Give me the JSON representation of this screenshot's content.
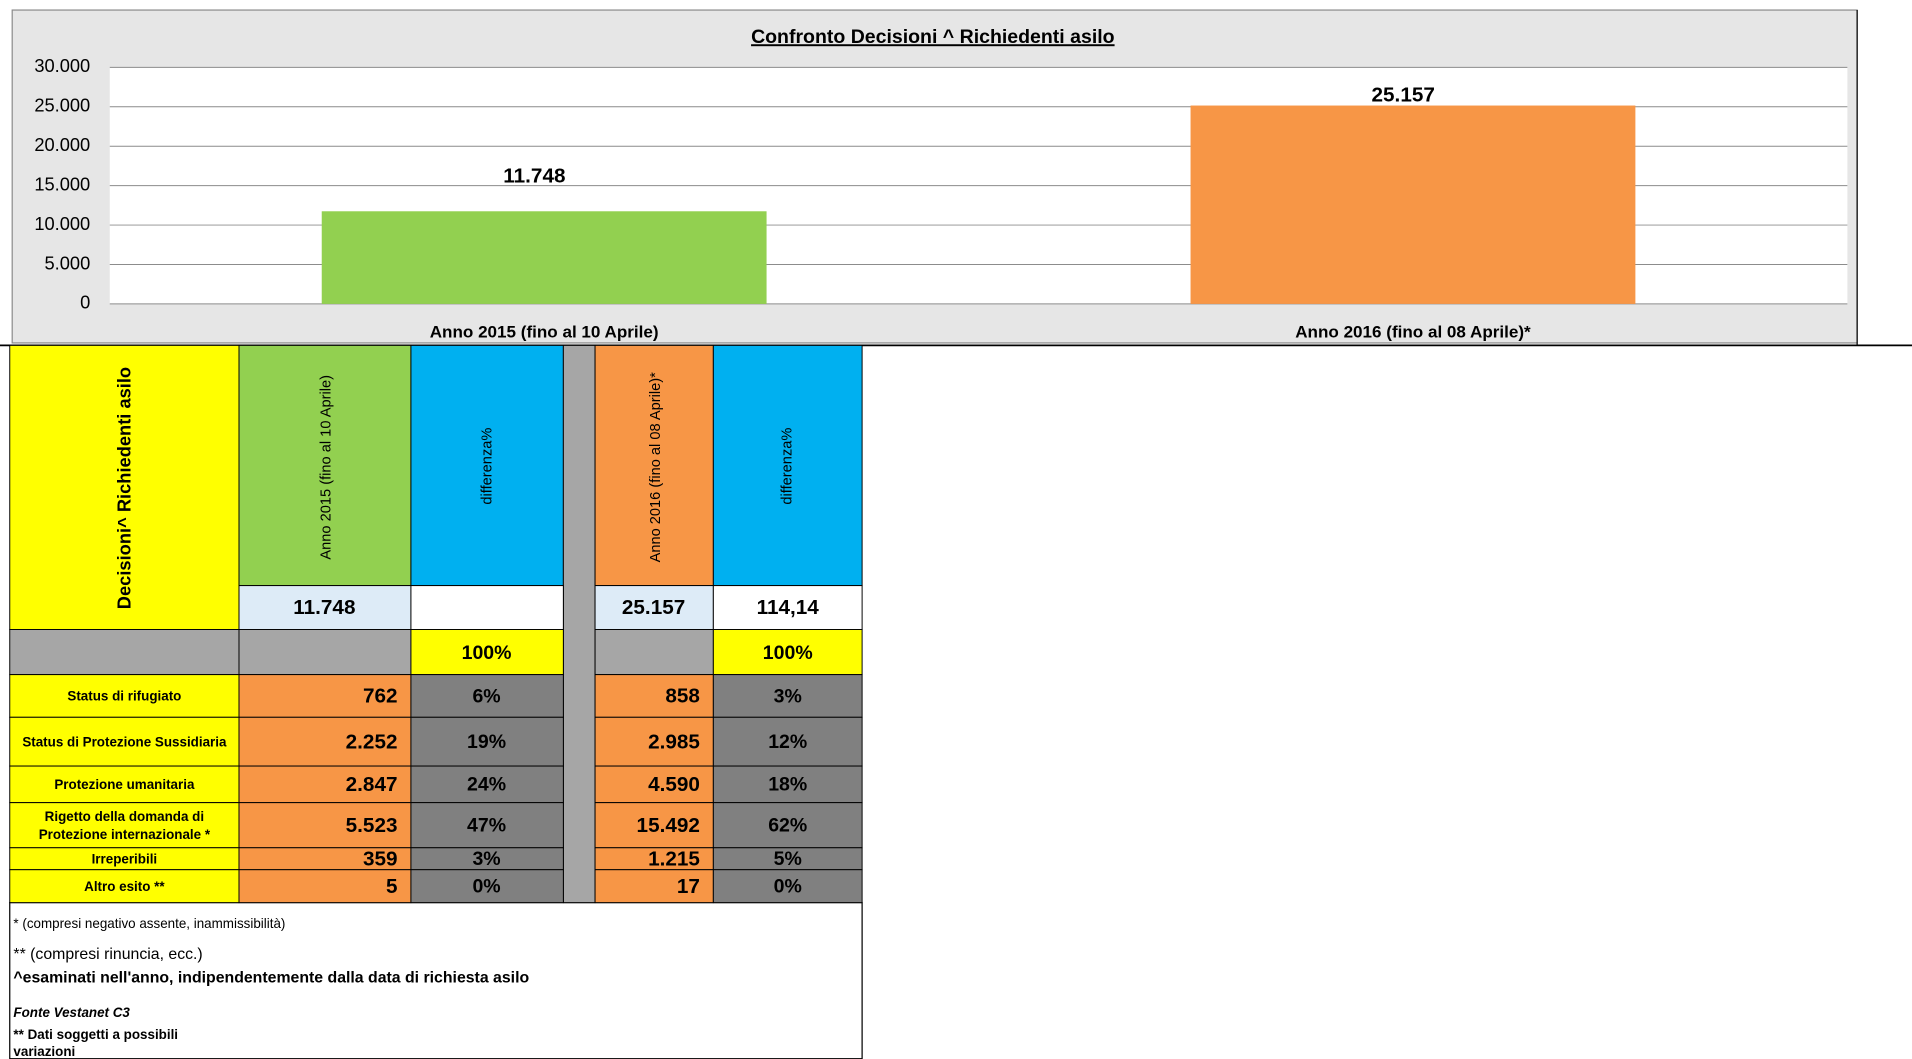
{
  "chart_data": {
    "type": "bar",
    "title": "Confronto Decisioni  ^ Richiedenti asilo",
    "categories": [
      "Anno 2015 (fino al 10 Aprile)",
      "Anno 2016 (fino al 08 Aprile)*"
    ],
    "values": [
      11748,
      25157
    ],
    "value_labels": [
      "11.748",
      "25.157"
    ],
    "colors": [
      "#92d050",
      "#f79646"
    ],
    "ylim": [
      0,
      30000
    ],
    "yticks": [
      0,
      {
        "value": 5000,
        "label": "5.000"
      },
      {
        "value": 10000,
        "label": "10.000"
      },
      {
        "value": 15000,
        "label": "15.000"
      },
      {
        "value": 20000,
        "label": "20.000"
      },
      {
        "value": 25000,
        "label": "25.000"
      },
      {
        "value": 30000,
        "label": "30.000"
      }
    ],
    "grid": true
  },
  "table": {
    "header": [
      "Decisioni^ Richiedenti asilo",
      "Anno 2015 (fino al 10 Aprile)",
      "differenza%",
      "Anno 2016 (fino al 08 Aprile)*",
      "differenza%"
    ],
    "totals": {
      "y2015": "11.748",
      "y2016": "25.157",
      "diff2016": "114,14"
    },
    "shares": [
      "100%",
      "100%"
    ],
    "rows": [
      {
        "label": [
          "Status di rifugiato"
        ],
        "y2015": "762",
        "diff2015": "6%",
        "y2016": "858",
        "diff2016": "3%"
      },
      {
        "label": [
          "Status di Protezione Sussidiaria"
        ],
        "y2015": "2.252",
        "diff2015": "19%",
        "y2016": "2.985",
        "diff2016": "12%"
      },
      {
        "label": [
          "Protezione umanitaria"
        ],
        "y2015": "2.847",
        "diff2015": "24%",
        "y2016": "4.590",
        "diff2016": "18%"
      },
      {
        "label": [
          "Rigetto della domanda di",
          "Protezione internazionale *"
        ],
        "y2015": "5.523",
        "diff2015": "47%",
        "y2016": "15.492",
        "diff2016": "62%"
      },
      {
        "label": [
          "Irreperibili"
        ],
        "y2015": "359",
        "diff2015": "3%",
        "y2016": "1.215",
        "diff2016": "5%"
      },
      {
        "label": [
          "Altro esito **"
        ],
        "y2015": "5",
        "diff2015": "0%",
        "y2016": "17",
        "diff2016": "0%"
      }
    ]
  },
  "notes": [
    "* (compresi negativo assente, inammissibilità)",
    "** (compresi rinuncia, ecc.)",
    " ^esaminati nell'anno, indipendentemente dalla data di richiesta asilo",
    "Fonte Vestanet C3",
    "** Dati soggetti a possibili",
    "variazioni"
  ]
}
